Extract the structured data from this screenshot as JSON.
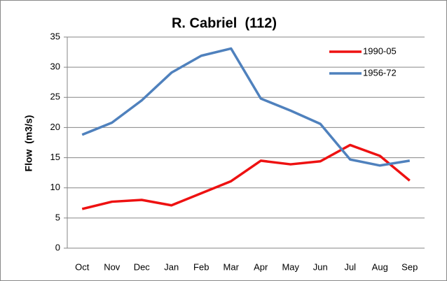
{
  "chart_data": {
    "type": "line",
    "title": "R. Cabriel  (112)",
    "y_label": "Flow  (m3/s)",
    "categories": [
      "Oct",
      "Nov",
      "Dec",
      "Jan",
      "Feb",
      "Mar",
      "Apr",
      "May",
      "Jun",
      "Jul",
      "Aug",
      "Sep"
    ],
    "series": [
      {
        "name": "1990-05",
        "color": "#ee1111",
        "values": [
          6.5,
          7.7,
          8.0,
          7.1,
          9.1,
          11.1,
          14.5,
          13.9,
          14.4,
          17.1,
          15.3,
          11.2
        ]
      },
      {
        "name": "1956-72",
        "color": "#4f81bd",
        "values": [
          18.8,
          20.8,
          24.5,
          29.1,
          31.9,
          33.1,
          24.8,
          22.8,
          20.6,
          14.7,
          13.7,
          14.5
        ]
      }
    ],
    "ylim": [
      0,
      35
    ],
    "yticks": [
      0,
      5,
      10,
      15,
      20,
      25,
      30,
      35
    ],
    "grid": true,
    "legend": "upper right"
  }
}
